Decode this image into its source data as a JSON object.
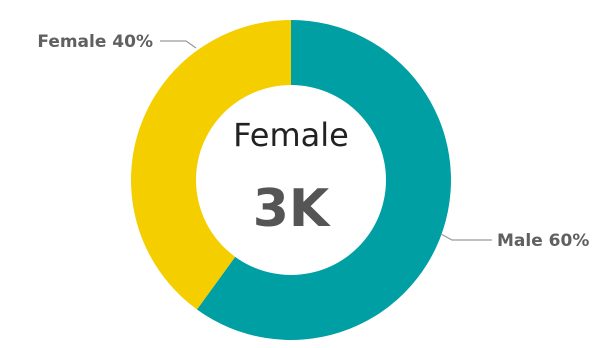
{
  "chart_data": {
    "type": "pie",
    "donut": true,
    "slices": [
      {
        "label": "Male 60%",
        "name": "Male",
        "value": 60,
        "color": "#009FA3"
      },
      {
        "label": "Female 40%",
        "name": "Female",
        "value": 40,
        "color": "#F5CE00"
      }
    ],
    "center": {
      "title": "Female",
      "value": "3K"
    }
  }
}
